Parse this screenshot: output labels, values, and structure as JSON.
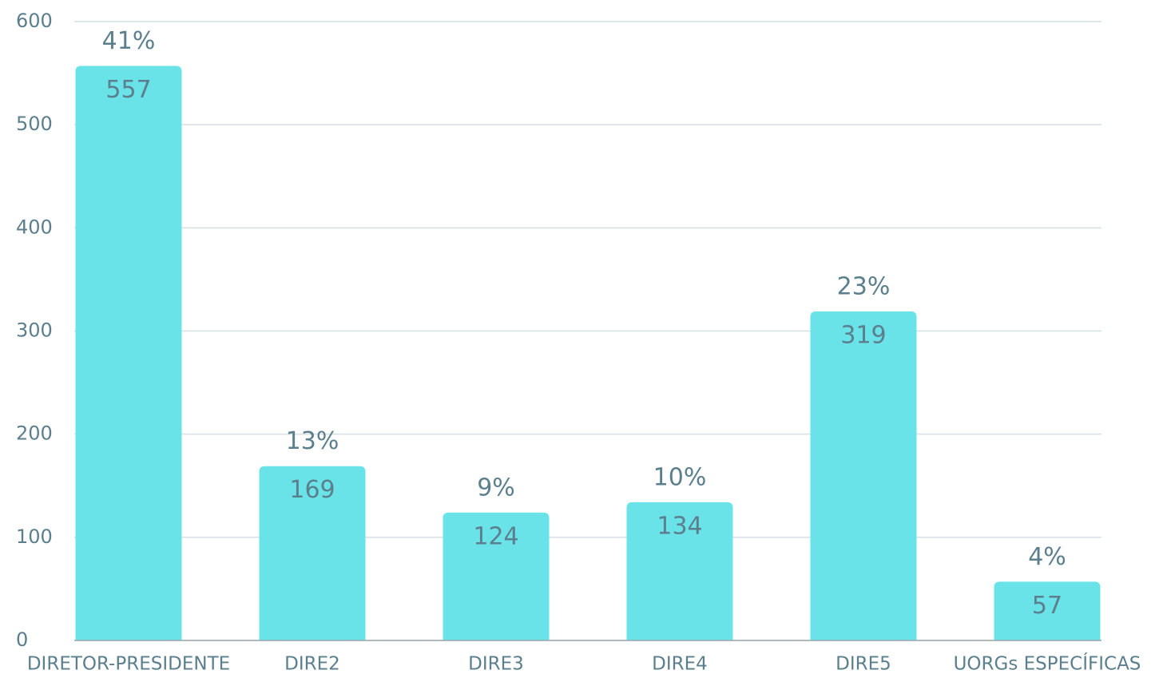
{
  "chart_data": {
    "type": "bar",
    "categories": [
      "DIRETOR-PRESIDENTE",
      "DIRE2",
      "DIRE3",
      "DIRE4",
      "DIRE5",
      "UORGs ESPECÍFICAS"
    ],
    "values": [
      557,
      169,
      124,
      134,
      319,
      57
    ],
    "percent_labels": [
      "41%",
      "13%",
      "9%",
      "10%",
      "23%",
      "4%"
    ],
    "color": "#6ae3e8",
    "ylim": [
      0,
      600
    ],
    "yticks": [
      0,
      100,
      200,
      300,
      400,
      500,
      600
    ],
    "grid": true
  }
}
